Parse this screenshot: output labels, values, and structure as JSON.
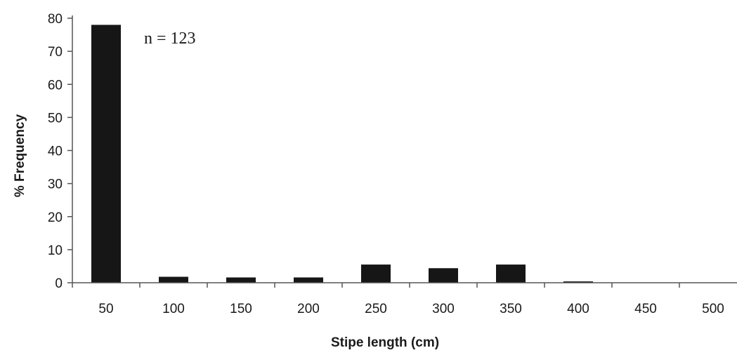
{
  "chart_data": {
    "type": "bar",
    "categories": [
      "50",
      "100",
      "150",
      "200",
      "250",
      "300",
      "350",
      "400",
      "450",
      "500"
    ],
    "values": [
      78,
      1.8,
      1.6,
      1.6,
      5.5,
      4.4,
      5.5,
      0.4,
      0,
      0
    ],
    "xlabel": "Stipe length (cm)",
    "ylabel": "% Frequency",
    "ylim": [
      0,
      80
    ],
    "yticks": [
      "0",
      "10",
      "20",
      "30",
      "40",
      "50",
      "60",
      "70",
      "80"
    ],
    "annotation": "n = 123",
    "bar_color": "#161616",
    "grid": false
  }
}
